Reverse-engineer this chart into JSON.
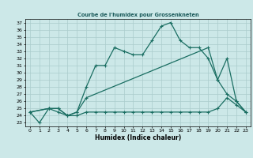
{
  "title": "Courbe de l'humidex pour Grossenkneten",
  "xlabel": "Humidex (Indice chaleur)",
  "xlim": [
    -0.5,
    23.5
  ],
  "ylim": [
    22.5,
    37.5
  ],
  "xticks": [
    0,
    1,
    2,
    3,
    4,
    5,
    6,
    7,
    8,
    9,
    10,
    11,
    12,
    13,
    14,
    15,
    16,
    17,
    18,
    19,
    20,
    21,
    22,
    23
  ],
  "yticks": [
    23,
    24,
    25,
    26,
    27,
    28,
    29,
    30,
    31,
    32,
    33,
    34,
    35,
    36,
    37
  ],
  "bg_color": "#cce8e8",
  "grid_color": "#aacccc",
  "line_color": "#1a6e62",
  "line1_x": [
    0,
    1,
    2,
    3,
    4,
    5,
    6,
    7,
    8,
    9,
    10,
    11,
    12,
    13,
    14,
    15,
    16,
    17,
    18,
    19,
    20,
    21,
    22,
    23
  ],
  "line1_y": [
    24.5,
    23.0,
    25.0,
    25.0,
    24.0,
    24.5,
    28.0,
    31.0,
    31.0,
    33.5,
    33.0,
    32.5,
    32.5,
    34.5,
    36.5,
    37.0,
    34.5,
    33.5,
    33.5,
    32.0,
    29.0,
    32.0,
    26.0,
    24.5
  ],
  "line2_x": [
    0,
    2,
    3,
    4,
    5,
    6,
    19,
    20,
    21,
    22,
    23
  ],
  "line2_y": [
    24.5,
    25.0,
    25.0,
    24.0,
    24.5,
    26.5,
    33.5,
    29.0,
    27.0,
    26.0,
    24.5
  ],
  "line3_x": [
    0,
    2,
    3,
    4,
    5,
    6,
    7,
    8,
    9,
    10,
    11,
    12,
    13,
    14,
    15,
    16,
    17,
    18,
    19,
    20,
    21,
    22,
    23
  ],
  "line3_y": [
    24.5,
    25.0,
    24.5,
    24.0,
    24.0,
    24.5,
    24.5,
    24.5,
    24.5,
    24.5,
    24.5,
    24.5,
    24.5,
    24.5,
    24.5,
    24.5,
    24.5,
    24.5,
    24.5,
    25.0,
    26.5,
    25.5,
    24.5
  ]
}
